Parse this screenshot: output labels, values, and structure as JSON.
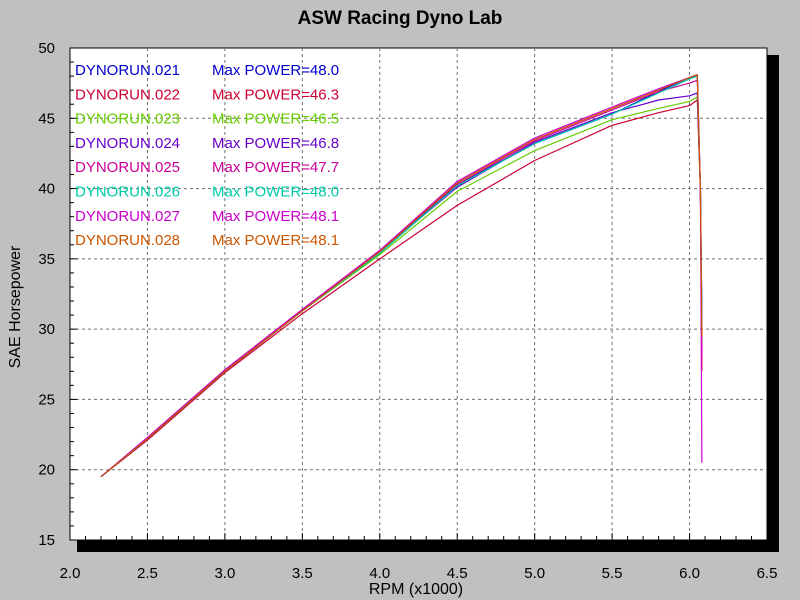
{
  "chart_data": {
    "type": "line",
    "title": "ASW Racing Dyno Lab",
    "xlabel": "RPM (x1000)",
    "ylabel": "SAE Horsepower",
    "xlim": [
      2.0,
      6.5
    ],
    "ylim": [
      15,
      50
    ],
    "x_ticks": [
      "2.0",
      "2.5",
      "3.0",
      "3.5",
      "4.0",
      "4.5",
      "5.0",
      "5.5",
      "6.0",
      "6.5"
    ],
    "y_ticks": [
      "15",
      "20",
      "25",
      "30",
      "35",
      "40",
      "45",
      "50"
    ],
    "grid": true,
    "legend_position": "top-left",
    "series": [
      {
        "name": "DYNORUN.021",
        "label": "Max POWER=48.0",
        "color": "#0000cc",
        "x": [
          2.2,
          2.5,
          3.0,
          3.5,
          4.0,
          4.5,
          5.0,
          5.5,
          5.8,
          6.0,
          6.05,
          6.07,
          6.08
        ],
        "y": [
          19.5,
          22.2,
          27.0,
          31.3,
          35.4,
          40.3,
          43.2,
          45.3,
          46.9,
          47.9,
          48.0,
          40.0,
          30.5
        ]
      },
      {
        "name": "DYNORUN.022",
        "label": "Max POWER=46.3",
        "color": "#cc0033",
        "x": [
          2.2,
          2.5,
          3.0,
          3.5,
          4.0,
          4.5,
          5.0,
          5.5,
          5.8,
          6.0,
          6.05,
          6.07,
          6.08
        ],
        "y": [
          19.5,
          22.1,
          26.9,
          31.1,
          35.0,
          38.8,
          42.0,
          44.5,
          45.4,
          45.9,
          46.3,
          40.0,
          27.0
        ]
      },
      {
        "name": "DYNORUN.023",
        "label": "Max POWER=46.5",
        "color": "#66cc00",
        "x": [
          2.2,
          2.5,
          3.0,
          3.5,
          4.0,
          4.5,
          5.0,
          5.5,
          5.8,
          6.0,
          6.05,
          6.07,
          6.08
        ],
        "y": [
          19.5,
          22.2,
          27.0,
          31.3,
          35.3,
          39.8,
          42.7,
          44.9,
          45.7,
          46.2,
          46.5,
          40.0,
          29.0
        ]
      },
      {
        "name": "DYNORUN.024",
        "label": "Max POWER=46.8",
        "color": "#6600cc",
        "x": [
          2.2,
          2.5,
          3.0,
          3.5,
          4.0,
          4.5,
          5.0,
          5.5,
          5.8,
          6.0,
          6.05,
          6.07,
          6.08
        ],
        "y": [
          19.5,
          22.2,
          27.0,
          31.3,
          35.5,
          40.1,
          43.3,
          45.4,
          46.3,
          46.6,
          46.8,
          40.0,
          31.0
        ]
      },
      {
        "name": "DYNORUN.025",
        "label": "Max POWER=47.7",
        "color": "#cc0099",
        "x": [
          2.2,
          2.5,
          3.0,
          3.5,
          4.0,
          4.5,
          5.0,
          5.5,
          5.8,
          6.0,
          6.05,
          6.07,
          6.08
        ],
        "y": [
          19.5,
          22.2,
          27.1,
          31.4,
          35.6,
          40.3,
          43.4,
          45.6,
          46.9,
          47.5,
          47.7,
          40.0,
          28.0
        ]
      },
      {
        "name": "DYNORUN.026",
        "label": "Max POWER=48.0",
        "color": "#00ccaa",
        "x": [
          2.2,
          2.5,
          3.0,
          3.5,
          4.0,
          4.5,
          5.0,
          5.5,
          5.8,
          6.0,
          6.05,
          6.07,
          6.08
        ],
        "y": [
          19.5,
          22.2,
          27.0,
          31.3,
          35.4,
          40.2,
          43.2,
          45.3,
          46.8,
          47.8,
          48.0,
          40.0,
          30.0
        ]
      },
      {
        "name": "DYNORUN.027",
        "label": "Max POWER=48.1",
        "color": "#cc00cc",
        "x": [
          2.2,
          2.5,
          3.0,
          3.5,
          4.0,
          4.5,
          5.0,
          5.5,
          5.8,
          6.0,
          6.05,
          6.07,
          6.08
        ],
        "y": [
          19.5,
          22.3,
          27.1,
          31.4,
          35.6,
          40.5,
          43.6,
          45.8,
          47.1,
          47.9,
          48.1,
          40.0,
          20.5
        ]
      },
      {
        "name": "DYNORUN.028",
        "label": "Max POWER=48.1",
        "color": "#cc5500",
        "x": [
          2.2,
          2.5,
          3.0,
          3.5,
          4.0,
          4.5,
          5.0,
          5.5,
          5.8,
          6.0,
          6.05,
          6.07,
          6.08
        ],
        "y": [
          19.5,
          22.2,
          27.0,
          31.3,
          35.5,
          40.4,
          43.5,
          45.7,
          47.0,
          47.9,
          48.1,
          40.0,
          29.5
        ]
      }
    ]
  }
}
